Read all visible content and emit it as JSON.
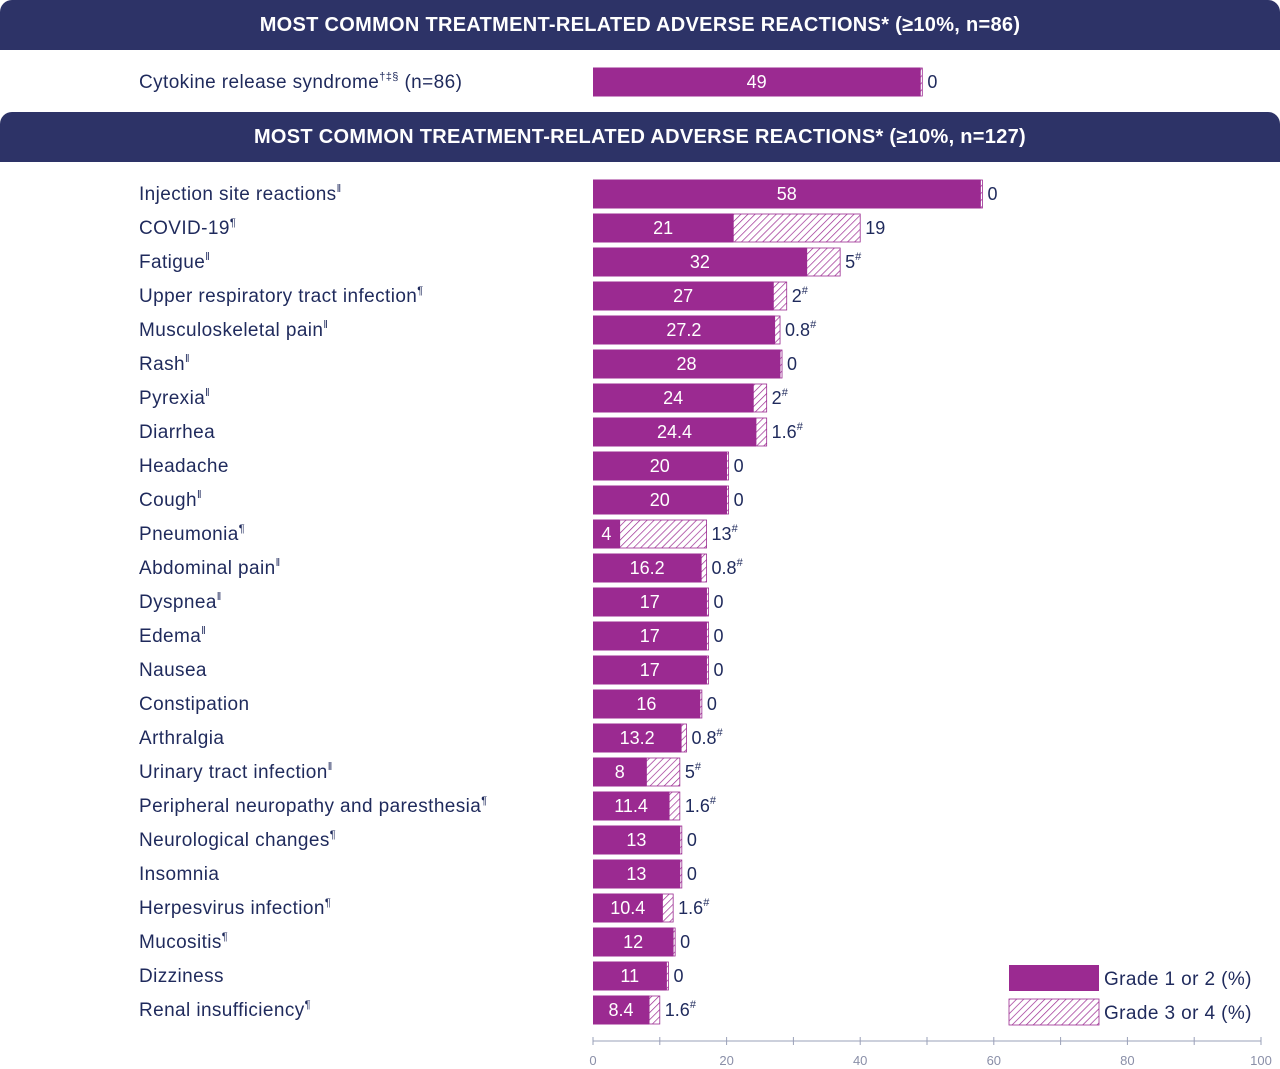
{
  "banner_top": "MOST COMMON TREATMENT-RELATED ADVERSE REACTIONS* (≥10%, n=86)",
  "banner_main": "MOST COMMON TREATMENT-RELATED ADVERSE REACTIONS* (≥10%, n=127)",
  "colors": {
    "banner": "#2d3367",
    "grade12": "#9b2a91",
    "text": "#1f2a5c",
    "axis": "#9aa0b8"
  },
  "legend": {
    "grade12": "Grade 1 or 2 (%)",
    "grade34": "Grade 3 or 4 (%)"
  },
  "chart_data": {
    "type": "bar",
    "orientation": "horizontal",
    "stacked": true,
    "xlim": [
      0,
      100
    ],
    "xticks": [
      0,
      20,
      40,
      60,
      80,
      100
    ],
    "legend_position": "bottom-right",
    "grid": false,
    "series": [
      {
        "name": "Grade 1 or 2 (%)",
        "fill": "solid"
      },
      {
        "name": "Grade 3 or 4 (%)",
        "fill": "hatched"
      }
    ],
    "group_top": [
      {
        "label": "Cytokine release syndrome",
        "sup": "†‡§",
        "suffix": " (n=86)",
        "g12": 49,
        "g34": 0,
        "g34_label": "0",
        "g34_sup": ""
      }
    ],
    "group_main": [
      {
        "label": "Injection site reactions",
        "sup": "ǁ",
        "suffix": "",
        "g12": 58,
        "g34": 0,
        "g34_label": "0",
        "g34_sup": ""
      },
      {
        "label": "COVID-19",
        "sup": "¶",
        "suffix": "",
        "g12": 21,
        "g34": 19,
        "g34_label": "19",
        "g34_sup": ""
      },
      {
        "label": "Fatigue",
        "sup": "ǁ",
        "suffix": "",
        "g12": 32,
        "g34": 5,
        "g34_label": "5",
        "g34_sup": "#"
      },
      {
        "label": "Upper respiratory tract infection",
        "sup": "¶",
        "suffix": "",
        "g12": 27,
        "g34": 2,
        "g34_label": "2",
        "g34_sup": "#"
      },
      {
        "label": "Musculoskeletal pain",
        "sup": "ǁ",
        "suffix": "",
        "g12": 27.2,
        "g34": 0.8,
        "g34_label": "0.8",
        "g34_sup": "#"
      },
      {
        "label": "Rash",
        "sup": "ǁ",
        "suffix": "",
        "g12": 28,
        "g34": 0,
        "g34_label": "0",
        "g34_sup": ""
      },
      {
        "label": "Pyrexia",
        "sup": "ǁ",
        "suffix": "",
        "g12": 24,
        "g34": 2,
        "g34_label": "2",
        "g34_sup": "#"
      },
      {
        "label": "Diarrhea",
        "sup": "",
        "suffix": "",
        "g12": 24.4,
        "g34": 1.6,
        "g34_label": "1.6",
        "g34_sup": "#"
      },
      {
        "label": "Headache",
        "sup": "",
        "suffix": "",
        "g12": 20,
        "g34": 0,
        "g34_label": "0",
        "g34_sup": ""
      },
      {
        "label": "Cough",
        "sup": "ǁ",
        "suffix": "",
        "g12": 20,
        "g34": 0,
        "g34_label": "0",
        "g34_sup": ""
      },
      {
        "label": "Pneumonia",
        "sup": "¶",
        "suffix": "",
        "g12": 4,
        "g34": 13,
        "g34_label": "13",
        "g34_sup": "#"
      },
      {
        "label": "Abdominal pain",
        "sup": "ǁ",
        "suffix": "",
        "g12": 16.2,
        "g34": 0.8,
        "g34_label": "0.8",
        "g34_sup": "#"
      },
      {
        "label": "Dyspnea",
        "sup": "ǁ",
        "suffix": "",
        "g12": 17,
        "g34": 0,
        "g34_label": "0",
        "g34_sup": ""
      },
      {
        "label": "Edema",
        "sup": "ǁ",
        "suffix": "",
        "g12": 17,
        "g34": 0,
        "g34_label": "0",
        "g34_sup": ""
      },
      {
        "label": "Nausea",
        "sup": "",
        "suffix": "",
        "g12": 17,
        "g34": 0,
        "g34_label": "0",
        "g34_sup": ""
      },
      {
        "label": "Constipation",
        "sup": "",
        "suffix": "",
        "g12": 16,
        "g34": 0,
        "g34_label": "0",
        "g34_sup": ""
      },
      {
        "label": "Arthralgia",
        "sup": "",
        "suffix": "",
        "g12": 13.2,
        "g34": 0.8,
        "g34_label": "0.8",
        "g34_sup": "#"
      },
      {
        "label": "Urinary tract infection",
        "sup": "ǁ",
        "suffix": "",
        "g12": 8,
        "g34": 5,
        "g34_label": "5",
        "g34_sup": "#"
      },
      {
        "label": "Peripheral neuropathy and paresthesia",
        "sup": "¶",
        "suffix": "",
        "g12": 11.4,
        "g34": 1.6,
        "g34_label": "1.6",
        "g34_sup": "#"
      },
      {
        "label": "Neurological changes",
        "sup": "¶",
        "suffix": "",
        "g12": 13,
        "g34": 0,
        "g34_label": "0",
        "g34_sup": ""
      },
      {
        "label": "Insomnia",
        "sup": "",
        "suffix": "",
        "g12": 13,
        "g34": 0,
        "g34_label": "0",
        "g34_sup": ""
      },
      {
        "label": "Herpesvirus infection",
        "sup": "¶",
        "suffix": "",
        "g12": 10.4,
        "g34": 1.6,
        "g34_label": "1.6",
        "g34_sup": "#"
      },
      {
        "label": "Mucositis",
        "sup": "¶",
        "suffix": "",
        "g12": 12,
        "g34": 0,
        "g34_label": "0",
        "g34_sup": ""
      },
      {
        "label": "Dizziness",
        "sup": "",
        "suffix": "",
        "g12": 11,
        "g34": 0,
        "g34_label": "0",
        "g34_sup": ""
      },
      {
        "label": "Renal insufficiency",
        "sup": "¶",
        "suffix": "",
        "g12": 8.4,
        "g34": 1.6,
        "g34_label": "1.6",
        "g34_sup": "#"
      }
    ]
  }
}
